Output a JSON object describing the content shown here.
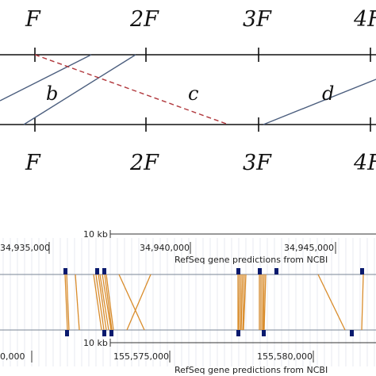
{
  "upper_diagram": {
    "top_axis_labels": [
      "F",
      "2F",
      "3F",
      "4F"
    ],
    "bottom_axis_labels": [
      "F",
      "2F",
      "3F",
      "4F"
    ],
    "segment_labels": [
      "b",
      "c",
      "d"
    ],
    "colors": {
      "axis": "#111111",
      "solid_link": "#4b5e7e",
      "dashed_link": "#b0363b"
    }
  },
  "genome_browser": {
    "top_track": {
      "scale_label": "10 kb",
      "coordinates": [
        "34,935,000",
        "34,940,000",
        "34,945,000"
      ],
      "track_title": "RefSeq gene predictions from NCBI"
    },
    "bottom_track": {
      "scale_label": "10 kb",
      "coordinates": [
        "0,000",
        "155,575,000",
        "155,580,000"
      ],
      "track_title": "RefSeq gene predictions from NCBI"
    },
    "colors": {
      "link": "#d98c2b",
      "gene_block": "#0a1a6e",
      "grid": "#d8dde6",
      "axis": "#333333"
    }
  }
}
